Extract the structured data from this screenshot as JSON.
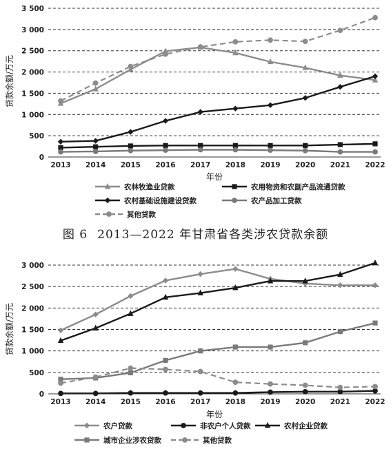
{
  "caption": {
    "figure_no": "图 6",
    "text": "2013—2022 年甘肃省各类涉农贷款余额"
  },
  "chart_data": [
    {
      "type": "line",
      "ylabel": "贷款余额/万元",
      "xlabel": "年份",
      "ylim": [
        0,
        3500
      ],
      "yticks": [
        "0",
        "500",
        "1 000",
        "1 500",
        "2 000",
        "2 500",
        "3 000",
        "3 500"
      ],
      "x": [
        "2013",
        "2014",
        "2015",
        "2016",
        "2017",
        "2018",
        "2019",
        "2020",
        "2021",
        "2022"
      ],
      "grid": "horizontal dashed",
      "legend_placement": "bottom",
      "series": [
        {
          "name": "农林牧渔业贷款",
          "marker": "triangle",
          "dash": false,
          "values": [
            1260,
            1600,
            2060,
            2490,
            2580,
            2450,
            2240,
            2100,
            1920,
            1810
          ]
        },
        {
          "name": "农用物资和农副产品流通贷款",
          "marker": "square",
          "dash": false,
          "values": [
            220,
            240,
            260,
            270,
            270,
            270,
            270,
            270,
            290,
            310
          ]
        },
        {
          "name": "农村基础设施建设贷款",
          "marker": "diamond",
          "dash": false,
          "values": [
            360,
            380,
            590,
            850,
            1060,
            1140,
            1220,
            1390,
            1650,
            1900
          ]
        },
        {
          "name": "农产品加工贷款",
          "marker": "circle",
          "dash": false,
          "values": [
            120,
            130,
            150,
            160,
            170,
            170,
            160,
            150,
            120,
            120
          ]
        },
        {
          "name": "其他贷款",
          "marker": "circle",
          "dash": true,
          "values": [
            1320,
            1740,
            2130,
            2420,
            2590,
            2710,
            2750,
            2720,
            2980,
            3280
          ]
        }
      ]
    },
    {
      "type": "line",
      "ylabel": "贷款余额/万元",
      "xlabel": "年份",
      "ylim": [
        0,
        3000
      ],
      "yticks": [
        "0",
        "500",
        "1 000",
        "1 500",
        "2 000",
        "2 500",
        "3 000"
      ],
      "x": [
        "2013",
        "2014",
        "2015",
        "2016",
        "2017",
        "2018",
        "2019",
        "2020",
        "2021",
        "2022"
      ],
      "grid": "horizontal dashed",
      "legend_placement": "bottom",
      "series": [
        {
          "name": "农户贷款",
          "marker": "diamond",
          "dash": false,
          "values": [
            1480,
            1850,
            2280,
            2640,
            2790,
            2910,
            2680,
            2570,
            2530,
            2530
          ]
        },
        {
          "name": "非农户个人贷款",
          "marker": "circle",
          "dash": false,
          "values": [
            10,
            10,
            20,
            20,
            20,
            20,
            40,
            50,
            50,
            70
          ]
        },
        {
          "name": "农村企业贷款",
          "marker": "triangle",
          "dash": false,
          "values": [
            1240,
            1530,
            1870,
            2250,
            2350,
            2470,
            2630,
            2630,
            2780,
            3050
          ]
        },
        {
          "name": "城市企业涉农贷款",
          "marker": "square",
          "dash": false,
          "values": [
            340,
            370,
            490,
            780,
            1000,
            1090,
            1090,
            1190,
            1450,
            1650
          ]
        },
        {
          "name": "其他贷款",
          "marker": "circle",
          "dash": true,
          "values": [
            250,
            390,
            600,
            570,
            520,
            270,
            230,
            200,
            150,
            170
          ]
        }
      ]
    }
  ]
}
